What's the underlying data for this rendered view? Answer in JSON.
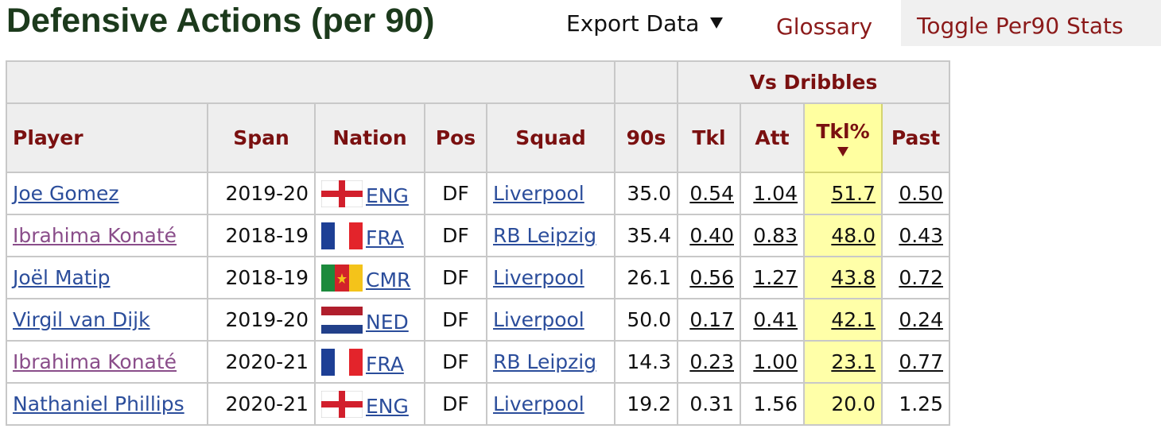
{
  "header": {
    "title": "Defensive Actions (per 90)",
    "menu": [
      "Export Data",
      "Glossary",
      "Toggle Per90 Stats"
    ]
  },
  "table": {
    "group_header": "Vs Dribbles",
    "columns": [
      "Player",
      "Span",
      "Nation",
      "Pos",
      "Squad",
      "90s",
      "Tkl",
      "Att",
      "Tkl%",
      "Past"
    ],
    "rows": [
      [
        "Joe Gomez",
        "2019-20",
        "ENG",
        "DF",
        "Liverpool",
        "35.0",
        "0.54",
        "1.04",
        "51.7",
        "0.50"
      ],
      [
        "Ibrahima Konaté",
        "2018-19",
        "FRA",
        "DF",
        "RB Leipzig",
        "35.4",
        "0.40",
        "0.83",
        "48.0",
        "0.43"
      ],
      [
        "Joël Matip",
        "2018-19",
        "CMR",
        "DF",
        "Liverpool",
        "26.1",
        "0.56",
        "1.27",
        "43.8",
        "0.72"
      ],
      [
        "Virgil van Dijk",
        "2019-20",
        "NED",
        "DF",
        "Liverpool",
        "50.0",
        "0.17",
        "0.41",
        "42.1",
        "0.24"
      ],
      [
        "Ibrahima Konaté",
        "2020-21",
        "FRA",
        "DF",
        "RB Leipzig",
        "14.3",
        "0.23",
        "1.00",
        "23.1",
        "0.77"
      ],
      [
        "Nathaniel Phillips",
        "2020-21",
        "ENG",
        "DF",
        "Liverpool",
        "19.2",
        "0.31",
        "1.56",
        "20.0",
        "1.25"
      ]
    ]
  }
}
